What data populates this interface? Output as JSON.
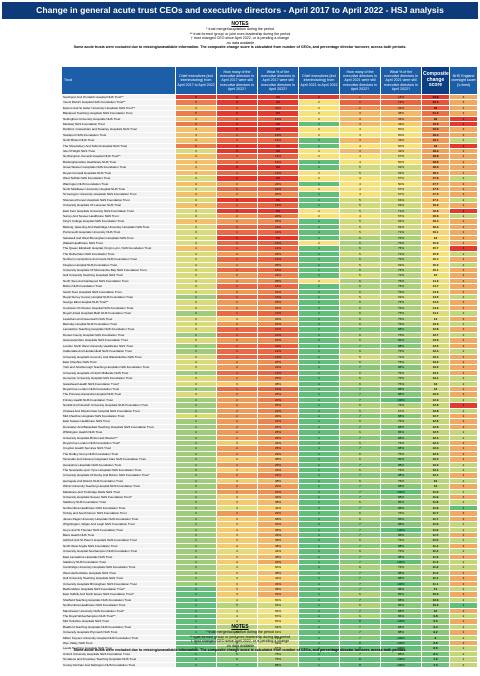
{
  "title": "Change in general acute trust CEOs and executive directors - April 2017 to April 2022 - HSJ analysis",
  "notes": {
    "heading": "NOTES",
    "lines": [
      "* trust merger/acquisition during the period",
      "** trust formed 'group' or joint exec leadership during the period",
      "† trust changed CEO since April 2022, or is pending a change",
      "-no data available"
    ],
    "bold": "Some acute trusts were excluded due to missing/unavailable information. The composite change score is calculated from number of CEOs, and percentage director turnover, across both periods."
  },
  "colors": {
    "header_bg": "#1c5ea8",
    "composite_header_bg": "#0b3e82",
    "title_bg": "#0d3a78",
    "high": "#e23a2e",
    "mid": "#f6e27a",
    "low": "#63be7b"
  },
  "chart_data": {
    "type": "table",
    "title": "Change in general acute trust CEOs and executive directors - April 2017 to April 2022 - HSJ analysis",
    "columns": [
      "Trust",
      "Chief executives (incl interim/acting) from April 2017 to April 2022",
      "How many of the executive directors in April 2017 were still executive directors in April 2022?",
      "What % of the executive directors in April 2017 were still executive directors in April 2022?",
      "Chief executives (incl interim/acting) from April 2021 to April 2022",
      "How many of the executive directors in April 2021 were still executive directors in April 2022?",
      "What % of the executive directors in April 2021 were still executive directors in April 2022?",
      "Composite change score",
      "NHS England oversight score (1=best)"
    ],
    "rows": [
      [
        "Southport And Ormskirk Hospital NHS Trust**",
        6,
        0,
        "0%",
        3,
        1,
        "14%",
        24.8,
        3
      ],
      [
        "Yeovil District Hospital NHS Foundation Trust**",
        5,
        0,
        "0%",
        2,
        1,
        "13%",
        22.6,
        3
      ],
      [
        "Epsom And St Helier University Hospitals NHS Trust**",
        4,
        1,
        "11%",
        2,
        2,
        "25%",
        22.0,
        3
      ],
      [
        "Blackpool Teaching Hospitals NHS Foundation Trust",
        5,
        0,
        "0%",
        2,
        3,
        "38%",
        21.2,
        3
      ],
      [
        "Nottingham University Hospitals NHS Trust",
        4,
        1,
        "14%",
        2,
        3,
        "33%",
        20.0,
        4
      ],
      [
        "Medway NHS Foundation Trust",
        5,
        0,
        "0%",
        1,
        3,
        "43%",
        19.8,
        4
      ],
      [
        "Dartford, Gravesham and Swanley Hospitals NHS Trust",
        4,
        0,
        "0%",
        2,
        4,
        "50%",
        19.6,
        3
      ],
      [
        "Stockport NHS Foundation Trust",
        4,
        1,
        "13%",
        2,
        4,
        "50%",
        19.4,
        3
      ],
      [
        "North Bristol NHS Trust",
        4,
        1,
        "14%",
        1,
        3,
        "43%",
        19.1,
        2
      ],
      [
        "The Shrewsbury And Telford Hospital NHS Trust",
        5,
        0,
        "0%",
        1,
        4,
        "50%",
        19.0,
        4
      ],
      [
        "Isle Of Wight NHS Trust",
        3,
        0,
        "0%",
        2,
        3,
        "43%",
        18.9,
        3
      ],
      [
        "Northampton General Hospital NHS Trust**",
        4,
        1,
        "13%",
        2,
        4,
        "57%",
        18.8,
        3
      ],
      [
        "Buckinghamshire Healthcare NHS Trust",
        4,
        1,
        "14%",
        1,
        4,
        "50%",
        18.6,
        3
      ],
      [
        "Great Western Hospitals NHS Foundation Trust",
        4,
        0,
        "0%",
        1,
        5,
        "63%",
        18.3,
        3
      ],
      [
        "Royal Cornwall Hospitals NHS Trust",
        4,
        1,
        "13%",
        2,
        5,
        "63%",
        18.1,
        3
      ],
      [
        "West Suffolk NHS Foundation Trust",
        3,
        0,
        "0%",
        2,
        4,
        "57%",
        17.9,
        2
      ],
      [
        "Warrington NHS Foundation Trust",
        4,
        2,
        "22%",
        1,
        4,
        "50%",
        17.7,
        3
      ],
      [
        "North Middlesex University Hospital NHS Trust",
        3,
        1,
        "13%",
        2,
        4,
        "57%",
        17.5,
        3
      ],
      [
        "St George's University Hospitals NHS Foundation Trust",
        4,
        2,
        "25%",
        1,
        4,
        "57%",
        17.3,
        3
      ],
      [
        "Sherwood Forest Hospitals NHS Foundation Trust",
        3,
        0,
        "0%",
        1,
        5,
        "63%",
        17.1,
        2
      ],
      [
        "University Hospitals Of Leicester NHS Trust",
        4,
        1,
        "13%",
        1,
        5,
        "63%",
        16.9,
        3
      ],
      [
        "East Kent Hospitals University NHS Foundation Trust",
        3,
        0,
        "0%",
        2,
        5,
        "71%",
        16.8,
        4
      ],
      [
        "Surrey And Sussex Healthcare NHS Trust",
        3,
        2,
        "20%",
        2,
        4,
        "57%",
        16.6,
        2
      ],
      [
        "King's College Hospital NHS Foundation Trust",
        4,
        2,
        "25%",
        1,
        5,
        "63%",
        16.4,
        3
      ],
      [
        "Barking, Havering And Redbridge University Hospitals NHS Trust",
        3,
        1,
        "11%",
        1,
        5,
        "63%",
        16.3,
        3
      ],
      [
        "Portsmouth Hospitals University NHS Trust",
        3,
        1,
        "14%",
        1,
        5,
        "71%",
        16.1,
        3
      ],
      [
        "Sandwell And West Birmingham Hospitals NHS Trust",
        3,
        0,
        "0%",
        1,
        6,
        "75%",
        16.0,
        3
      ],
      [
        "Walsall Healthcare NHS Trust",
        3,
        1,
        "13%",
        2,
        6,
        "75%",
        15.9,
        3
      ],
      [
        "The Queen Elizabeth Hospital, King's Lynn, NHS Foundation Trust",
        4,
        1,
        "14%",
        1,
        6,
        "75%",
        15.7,
        4
      ],
      [
        "The Rotherham NHS Foundation Trust",
        3,
        2,
        "25%",
        1,
        5,
        "71%",
        15.6,
        2
      ],
      [
        "Northern Lincolnshire And Goole NHS Foundation Trust",
        3,
        1,
        "13%",
        1,
        6,
        "75%",
        15.4,
        3
      ],
      [
        "Kingston Hospital NHS Foundation Trust",
        3,
        2,
        "25%",
        1,
        5,
        "63%",
        15.2,
        2
      ],
      [
        "University Hospitals Of Morecambe Bay NHS Foundation Trust",
        3,
        1,
        "14%",
        1,
        6,
        "75%",
        15.1,
        3
      ],
      [
        "Hull University Teaching Hospitals NHS Trust",
        3,
        2,
        "22%",
        1,
        5,
        "71%",
        15.0,
        3
      ],
      [
        "North Tees And Hartlepool NHS Foundation Trust",
        3,
        2,
        "25%",
        2,
        6,
        "75%",
        14.9,
        3
      ],
      [
        "Bolton NHS Foundation Trust",
        3,
        1,
        "14%",
        1,
        6,
        "75%",
        14.7,
        3
      ],
      [
        "South Tees Hospitals NHS Foundation Trust",
        3,
        2,
        "22%",
        1,
        6,
        "75%",
        14.6,
        3
      ],
      [
        "Royal Surrey County Hospital NHS Foundation Trust",
        2,
        1,
        "13%",
        1,
        5,
        "63%",
        14.5,
        2
      ],
      [
        "George Eliot Hospital NHS Trust**",
        3,
        2,
        "25%",
        1,
        6,
        "75%",
        14.3,
        3
      ],
      [
        "Countess Of Chester Hospital NHS Foundation Trust",
        3,
        2,
        "25%",
        1,
        6,
        "75%",
        14.2,
        3
      ],
      [
        "Royal United Hospitals Bath NHS Foundation Trust",
        2,
        1,
        "13%",
        1,
        6,
        "75%",
        14.1,
        2
      ],
      [
        "Lewisham And Greenwich NHS Trust",
        3,
        3,
        "33%",
        1,
        6,
        "75%",
        14.0,
        3
      ],
      [
        "Barnsley Hospital NHS Foundation Trust",
        3,
        2,
        "25%",
        1,
        6,
        "75%",
        13.9,
        2
      ],
      [
        "Lancashire Teaching Hospitals NHS Foundation Trust",
        3,
        1,
        "13%",
        1,
        7,
        "88%",
        13.8,
        3
      ],
      [
        "Dorset County Hospital NHS Foundation Trust",
        2,
        1,
        "14%",
        1,
        6,
        "75%",
        13.7,
        2
      ],
      [
        "Gloucestershire Hospitals NHS Foundation Trust",
        3,
        2,
        "25%",
        1,
        6,
        "86%",
        13.6,
        3
      ],
      [
        "London North West University Healthcare NHS Trust",
        2,
        1,
        "11%",
        1,
        7,
        "88%",
        13.5,
        3
      ],
      [
        "Calderdale And Huddersfield NHS Foundation Trust",
        2,
        1,
        "14%",
        1,
        6,
        "75%",
        13.4,
        2
      ],
      [
        "University Hospitals Coventry And Warwickshire NHS Trust",
        3,
        1,
        "13%",
        1,
        5,
        "71%",
        13.4,
        3
      ],
      [
        "East Cheshire NHS Trust",
        3,
        2,
        "25%",
        1,
        6,
        "75%",
        13.3,
        3
      ],
      [
        "York and Scarborough Teaching Hospitals NHS Foundation Trust",
        3,
        2,
        "22%",
        1,
        7,
        "88%",
        13.2,
        3
      ],
      [
        "University Hospitals of North Midlands NHS Trust",
        2,
        1,
        "13%",
        1,
        6,
        "75%",
        13.1,
        3
      ],
      [
        "Homerton University Hospital NHS Foundation Trust",
        3,
        2,
        "25%",
        1,
        6,
        "75%",
        13.1,
        2
      ],
      [
        "Gateshead Health NHS Foundation Trust†",
        3,
        3,
        "38%",
        1,
        6,
        "75%",
        13.0,
        2
      ],
      [
        "Royal Free London NHS Foundation Trust",
        2,
        1,
        "13%",
        1,
        7,
        "88%",
        13.0,
        3
      ],
      [
        "The Princess Alexandra Hospital NHS Trust",
        3,
        2,
        "25%",
        1,
        7,
        "88%",
        12.9,
        3
      ],
      [
        "Frimley Health NHS Foundation Trust",
        2,
        2,
        "20%",
        1,
        7,
        "100%",
        12.9,
        2
      ],
      [
        "Norfolk And Norwich University Hospitals NHS Foundation Trust",
        2,
        2,
        "25%",
        1,
        6,
        "75%",
        12.8,
        4
      ],
      [
        "Chelsea And Westminster Hospital NHS Foundation Trust",
        2,
        2,
        "22%",
        1,
        6,
        "67%",
        12.8,
        2
      ],
      [
        "Mid Cheshire Hospitals NHS Foundation Trust",
        3,
        2,
        "29%",
        1,
        7,
        "88%",
        12.7,
        3
      ],
      [
        "East Sussex Healthcare NHS Trust",
        2,
        2,
        "22%",
        1,
        6,
        "75%",
        12.6,
        3
      ],
      [
        "Doncaster And Bassetlaw Teaching Hospitals NHS Foundation Trust",
        2,
        2,
        "25%",
        1,
        7,
        "88%",
        12.6,
        3
      ],
      [
        "Whittington Health NHS Trust",
        2,
        2,
        "25%",
        1,
        6,
        "86%",
        12.5,
        2
      ],
      [
        "University Hospitals Bristol and Weston**",
        2,
        2,
        "25%",
        1,
        7,
        "88%",
        12.4,
        2
      ],
      [
        "Royal Free London NHS Foundation Trust*",
        2,
        3,
        "33%",
        1,
        6,
        "75%",
        12.4,
        3
      ],
      [
        "Croydon Health Services NHS Trust",
        2,
        2,
        "25%",
        1,
        7,
        "88%",
        12.3,
        3
      ],
      [
        "The Dudley Group NHS Foundation Trust",
        2,
        2,
        "29%",
        1,
        6,
        "75%",
        12.3,
        3
      ],
      [
        "Tameside and Glossop Integrated Care NHS Foundation Trust",
        2,
        3,
        "38%",
        1,
        6,
        "86%",
        12.2,
        3
      ],
      [
        "Hampshire Hospitals NHS Foundation Trust",
        2,
        2,
        "25%",
        1,
        7,
        "88%",
        12.2,
        2
      ],
      [
        "The Newcastle upon Tyne Hospitals NHS Foundation Trust",
        2,
        3,
        "33%",
        1,
        6,
        "75%",
        12.1,
        2
      ],
      [
        "University Hospitals Of Derby And Burton NHS Foundation Trust*",
        2,
        2,
        "22%",
        1,
        7,
        "88%",
        12.1,
        3
      ],
      [
        "Harrogate And District NHS Foundation Trust",
        2,
        3,
        "38%",
        1,
        6,
        "75%",
        12.0,
        2
      ],
      [
        "Wirral University Teaching Hospital NHS Foundation Trust",
        2,
        2,
        "29%",
        1,
        7,
        "88%",
        12.0,
        3
      ],
      [
        "Maidstone And Tunbridge Wells NHS Trust",
        2,
        2,
        "25%",
        1,
        7,
        "100%",
        11.9,
        2
      ],
      [
        "University Hospitals Sussex NHS Foundation Trust*",
        2,
        3,
        "33%",
        1,
        7,
        "88%",
        11.9,
        3
      ],
      [
        "Salisbury NHS Foundation Trust",
        2,
        3,
        "38%",
        1,
        6,
        "86%",
        11.8,
        2
      ],
      [
        "Northumbria Healthcare NHS Foundation Trust",
        2,
        4,
        "44%",
        1,
        7,
        "88%",
        11.8,
        1
      ],
      [
        "Torbay and South Devon NHS Foundation Trust",
        2,
        2,
        "29%",
        1,
        6,
        "75%",
        11.7,
        3
      ],
      [
        "James Paget University Hospitals NHS Foundation Trust",
        2,
        3,
        "38%",
        1,
        6,
        "86%",
        11.7,
        3
      ],
      [
        "Wrightington, Wigan And Leigh NHS Foundation Trust",
        2,
        3,
        "33%",
        1,
        7,
        "88%",
        11.6,
        2
      ],
      [
        "Guy's and St Thomas' NHS Foundation Trust",
        2,
        3,
        "38%",
        1,
        7,
        "100%",
        11.6,
        2
      ],
      [
        "Barts Health NHS Trust",
        2,
        3,
        "33%",
        1,
        7,
        "88%",
        11.5,
        3
      ],
      [
        "Ashford And St Peter's Hospitals NHS Foundation Trust",
        2,
        3,
        "38%",
        1,
        6,
        "75%",
        11.5,
        2
      ],
      [
        "North West Anglia NHS Foundation Trust",
        2,
        3,
        "38%",
        1,
        7,
        "88%",
        11.4,
        3
      ],
      [
        "University Hospital Southampton NHS Foundation Trust",
        2,
        4,
        "44%",
        1,
        6,
        "75%",
        11.4,
        2
      ],
      [
        "East Lancashire Hospitals NHS Trust",
        2,
        3,
        "38%",
        1,
        7,
        "88%",
        11.3,
        3
      ],
      [
        "Salisbury NHS Foundation Trust",
        2,
        3,
        "33%",
        1,
        7,
        "100%",
        11.3,
        2
      ],
      [
        "Cambridge University Hospitals NHS Foundation Trust",
        2,
        4,
        "50%",
        1,
        6,
        "75%",
        11.2,
        2
      ],
      [
        "West Hertfordshire Hospitals NHS Trust",
        2,
        3,
        "38%",
        1,
        7,
        "88%",
        11.2,
        3
      ],
      [
        "Hull University Teaching Hospitals NHS Trust",
        2,
        4,
        "44%",
        1,
        7,
        "88%",
        11.1,
        3
      ],
      [
        "University Hospitals Birmingham NHS Foundation Trust",
        2,
        3,
        "33%",
        1,
        7,
        "100%",
        11.1,
        3
      ],
      [
        "Bedfordshire Hospitals NHS Foundation Trust*",
        1,
        3,
        "38%",
        1,
        7,
        "88%",
        11.0,
        2
      ],
      [
        "East Suffolk And North Essex NHS Foundation Trust*",
        1,
        3,
        "33%",
        1,
        6,
        "86%",
        10.9,
        3
      ],
      [
        "Sheffield Teaching Hospitals NHS Foundation Trust",
        1,
        4,
        "50%",
        1,
        7,
        "88%",
        10.6,
        2
      ],
      [
        "Northumbria Healthcare NHS Foundation Trust",
        1,
        5,
        "63%",
        1,
        6,
        "86%",
        10.2,
        1
      ],
      [
        "Manchester University NHS Foundation Trust*",
        1,
        4,
        "50%",
        1,
        7,
        "88%",
        10.0,
        3
      ],
      [
        "The Royal Wolverhampton NHS Trust**",
        1,
        4,
        "57%",
        1,
        6,
        "86%",
        9.8,
        2
      ],
      [
        "Mid Yorkshire Hospitals NHS Trust",
        1,
        4,
        "50%",
        1,
        8,
        "100%",
        9.6,
        3
      ],
      [
        "Bradford Teaching Hospitals NHS Foundation Trust",
        1,
        5,
        "63%",
        1,
        7,
        "88%",
        9.4,
        2
      ],
      [
        "University Hospitals Plymouth NHS Trust",
        1,
        5,
        "63%",
        1,
        7,
        "88%",
        9.2,
        3
      ],
      [
        "Milton Keynes University Hospital NHS Foundation Trust",
        1,
        5,
        "71%",
        1,
        7,
        "100%",
        9.0,
        2
      ],
      [
        "Wye Valley NHS Trust",
        1,
        5,
        "63%",
        1,
        8,
        "100%",
        8.8,
        3
      ],
      [
        "Leeds Teaching Hospitals NHS Trust",
        1,
        6,
        "67%",
        1,
        8,
        "100%",
        8.6,
        2
      ],
      [
        "Oxford University Hospitals NHS Foundation Trust",
        1,
        6,
        "75%",
        1,
        7,
        "88%",
        8.3,
        2
      ],
      [
        "St Helens and Knowsley Teaching Hospitals NHS Trust",
        1,
        6,
        "75%",
        1,
        8,
        "100%",
        7.9,
        2
      ],
      [
        "County Durham And Darlington NHS Foundation Trust",
        1,
        7,
        "88%",
        1,
        8,
        "100%",
        7.4,
        2
      ]
    ]
  }
}
